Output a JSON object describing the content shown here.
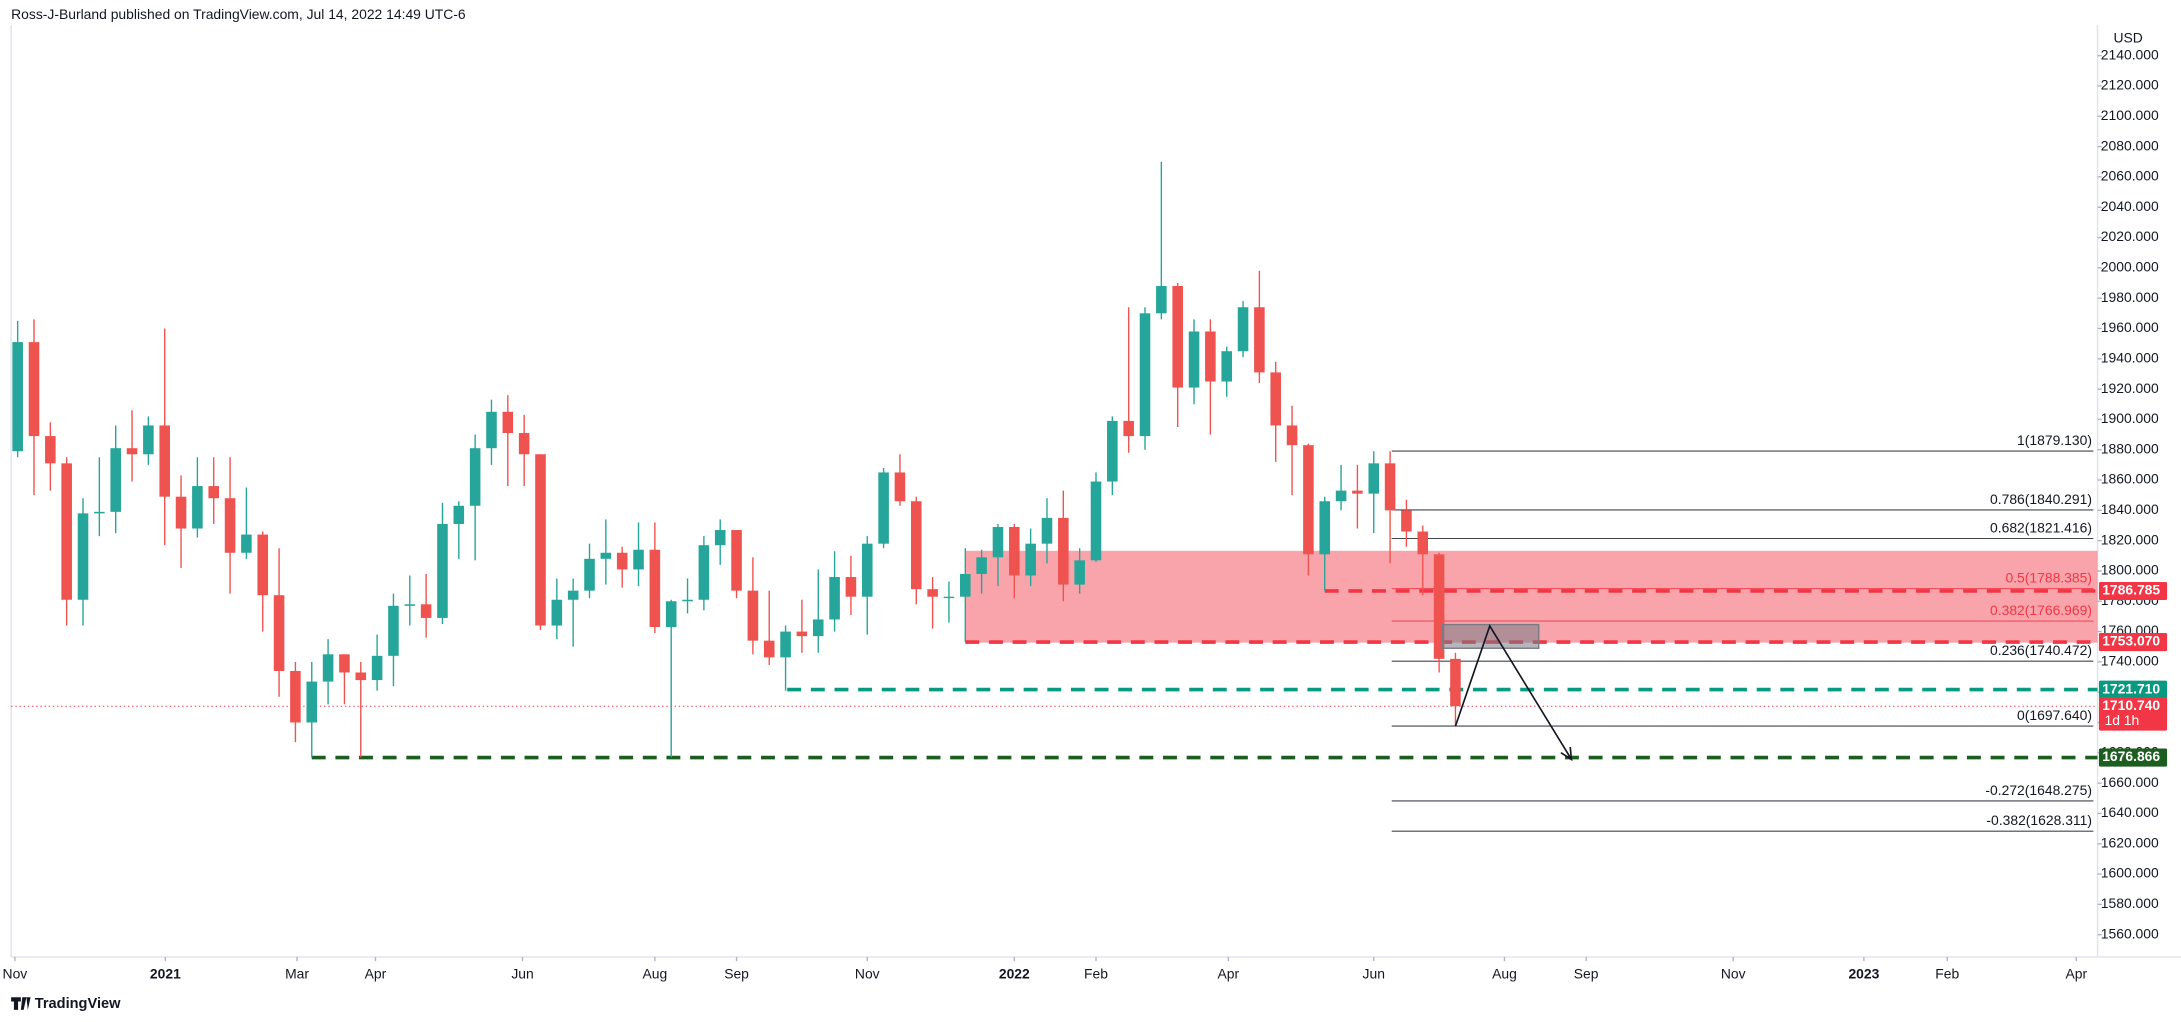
{
  "header": {
    "text": "Ross-J-Burland published on TradingView.com, Jul 14, 2022 14:49 UTC-6"
  },
  "footer": {
    "brand": "TradingView"
  },
  "chart_data": {
    "type": "candlestick",
    "currency": "USD",
    "up_color": "#26a69a",
    "down_color": "#ef5350",
    "grid": false,
    "xlim": [
      -0.4,
      127.3
    ],
    "xticks": [
      {
        "value": -0.17,
        "label": "Nov"
      },
      {
        "value": 9.04,
        "label": "2021"
      },
      {
        "value": 17.1,
        "label": "Mar"
      },
      {
        "value": 21.9,
        "label": "Apr"
      },
      {
        "value": 30.9,
        "label": "Jun"
      },
      {
        "value": 39.0,
        "label": "Aug"
      },
      {
        "value": 44.0,
        "label": "Sep"
      },
      {
        "value": 52.0,
        "label": "Nov"
      },
      {
        "value": 61.0,
        "label": "2022"
      },
      {
        "value": 66.0,
        "label": "Feb"
      },
      {
        "value": 74.1,
        "label": "Apr"
      },
      {
        "value": 83.0,
        "label": "Jun"
      },
      {
        "value": 91.0,
        "label": "Aug"
      },
      {
        "value": 96.0,
        "label": "Sep"
      },
      {
        "value": 105.0,
        "label": "Nov"
      },
      {
        "value": 113.0,
        "label": "2023"
      },
      {
        "value": 118.1,
        "label": "Feb"
      },
      {
        "value": 126.0,
        "label": "Apr"
      }
    ],
    "ylim": [
      1545.3,
      2160.2
    ],
    "yticks": [
      {
        "value": 1560,
        "label": "1560.000"
      },
      {
        "value": 1580,
        "label": "1580.000"
      },
      {
        "value": 1600,
        "label": "1600.000"
      },
      {
        "value": 1620,
        "label": "1620.000"
      },
      {
        "value": 1640,
        "label": "1640.000"
      },
      {
        "value": 1660,
        "label": "1660.000"
      },
      {
        "value": 1680,
        "label": "1680.000"
      },
      {
        "value": 1700,
        "label": "1700.000"
      },
      {
        "value": 1720,
        "label": "1720.000"
      },
      {
        "value": 1740,
        "label": "1740.000"
      },
      {
        "value": 1760,
        "label": "1760.000"
      },
      {
        "value": 1780,
        "label": "1780.000"
      },
      {
        "value": 1800,
        "label": "1800.000"
      },
      {
        "value": 1820,
        "label": "1820.000"
      },
      {
        "value": 1840,
        "label": "1840.000"
      },
      {
        "value": 1860,
        "label": "1860.000"
      },
      {
        "value": 1880,
        "label": "1880.000"
      },
      {
        "value": 1900,
        "label": "1900.000"
      },
      {
        "value": 1920,
        "label": "1920.000"
      },
      {
        "value": 1940,
        "label": "1940.000"
      },
      {
        "value": 1960,
        "label": "1960.000"
      },
      {
        "value": 1980,
        "label": "1980.000"
      },
      {
        "value": 2000,
        "label": "2000.000"
      },
      {
        "value": 2020,
        "label": "2020.000"
      },
      {
        "value": 2040,
        "label": "2040.000"
      },
      {
        "value": 2060,
        "label": "2060.000"
      },
      {
        "value": 2080,
        "label": "2080.000"
      },
      {
        "value": 2100,
        "label": "2100.000"
      },
      {
        "value": 2120,
        "label": "2120.000"
      },
      {
        "value": 2140,
        "label": "2140.000"
      }
    ],
    "open": [
      1879,
      1951,
      1889,
      1871,
      1781,
      1838,
      1839,
      1881,
      1877,
      1896,
      1849,
      1828,
      1856,
      1848,
      1812,
      1824,
      1784,
      1734,
      1700,
      1727,
      1745,
      1733,
      1728,
      1744,
      1777,
      1778,
      1769,
      1831,
      1843,
      1881,
      1905,
      1891,
      1877,
      1764,
      1781,
      1787,
      1808,
      1812,
      1801,
      1814,
      1763,
      1780,
      1781,
      1817,
      1827,
      1787,
      1754,
      1743,
      1760,
      1757,
      1768,
      1796,
      1783,
      1818,
      1865,
      1846,
      1788,
      1783,
      1783,
      1798,
      1809,
      1829,
      1797,
      1818,
      1835,
      1791,
      1807,
      1859,
      1899,
      1889,
      1970,
      1988,
      1921,
      1958,
      1925,
      1945,
      1974,
      1931,
      1896,
      1883,
      1811,
      1846,
      1853,
      1851,
      1871,
      1840,
      1826,
      1811,
      1742
    ],
    "high": [
      1965,
      1966,
      1898,
      1875,
      1848,
      1875,
      1896,
      1906,
      1902,
      1960,
      1863,
      1875,
      1875,
      1875,
      1855,
      1826,
      1815,
      1740,
      1740,
      1755,
      1745,
      1740,
      1758,
      1785,
      1797,
      1798,
      1845,
      1846,
      1890,
      1913,
      1916,
      1903,
      1877,
      1795,
      1795,
      1818,
      1834,
      1816,
      1832,
      1832,
      1781,
      1795,
      1823,
      1834,
      1827,
      1809,
      1787,
      1764,
      1781,
      1801,
      1813,
      1810,
      1823,
      1868,
      1877,
      1849,
      1796,
      1793,
      1815,
      1814,
      1831,
      1831,
      1828,
      1848,
      1853,
      1815,
      1865,
      1902,
      1974,
      1974,
      2070,
      1990,
      1966,
      1966,
      1948,
      1978,
      1998,
      1938,
      1909,
      1884,
      1849,
      1870,
      1870,
      1879,
      1879,
      1847,
      1830,
      1812,
      1746
    ],
    "low": [
      1875,
      1850,
      1853,
      1764,
      1764,
      1823,
      1825,
      1859,
      1870,
      1817,
      1802,
      1822,
      1831,
      1785,
      1808,
      1760,
      1717,
      1687,
      1677,
      1712,
      1712,
      1677,
      1721,
      1724,
      1764,
      1756,
      1765,
      1808,
      1807,
      1870,
      1856,
      1856,
      1761,
      1755,
      1750,
      1782,
      1791,
      1789,
      1790,
      1759,
      1677,
      1772,
      1774,
      1804,
      1782,
      1745,
      1738,
      1721,
      1746,
      1746,
      1760,
      1771,
      1758,
      1815,
      1843,
      1778,
      1762,
      1766,
      1753,
      1785,
      1790,
      1782,
      1790,
      1805,
      1780,
      1785,
      1806,
      1850,
      1878,
      1880,
      1966,
      1895,
      1910,
      1890,
      1915,
      1941,
      1924,
      1872,
      1850,
      1797,
      1787,
      1840,
      1828,
      1825,
      1805,
      1816,
      1784,
      1733,
      1697.64
    ],
    "close": [
      1951,
      1889,
      1871,
      1781,
      1838,
      1839,
      1881,
      1877,
      1896,
      1849,
      1828,
      1856,
      1848,
      1812,
      1824,
      1784,
      1734,
      1700,
      1727,
      1745,
      1733,
      1728,
      1744,
      1777,
      1778,
      1769,
      1831,
      1843,
      1881,
      1905,
      1891,
      1877,
      1764,
      1781,
      1787,
      1808,
      1812,
      1801,
      1814,
      1763,
      1780,
      1781,
      1817,
      1827,
      1787,
      1754,
      1743,
      1760,
      1757,
      1768,
      1796,
      1783,
      1818,
      1865,
      1846,
      1788,
      1783,
      1783,
      1798,
      1809,
      1829,
      1797,
      1818,
      1835,
      1791,
      1807,
      1859,
      1899,
      1889,
      1970,
      1988,
      1921,
      1958,
      1925,
      1945,
      1974,
      1931,
      1896,
      1883,
      1811,
      1846,
      1853,
      1851,
      1871,
      1840,
      1826,
      1811,
      1742,
      1710.74
    ],
    "zone": {
      "from": 58,
      "ylim": [
        1752.7,
        1813.3
      ],
      "color": "#f23645"
    },
    "box": {
      "xlim": [
        87.2,
        93.1
      ],
      "ylim": [
        1749,
        1764.6
      ],
      "color": "#787b86"
    },
    "projection": {
      "x": [
        88,
        90.1,
        95.1
      ],
      "y": [
        1697.64,
        1763.7,
        1675.6
      ],
      "color": "#131722"
    },
    "levels": [
      {
        "value": 1786.785,
        "label": "1786.785",
        "from": 80,
        "color": "#f23645"
      },
      {
        "value": 1753.07,
        "label": "1753.070",
        "from": 58,
        "color": "#f23645"
      },
      {
        "value": 1721.71,
        "label": "1721.710",
        "from": 47.1,
        "color": "#089981"
      },
      {
        "value": 1676.866,
        "label": "1676.866",
        "from": 18,
        "color": "#1b5e20"
      }
    ],
    "last_price": {
      "value": 1710.74,
      "label": "1710.740",
      "countdown": "1d 1h",
      "color": "#f23645"
    },
    "fib": {
      "from": 84.1,
      "levels": [
        {
          "value": 1879.13,
          "label": "1(1879.130)",
          "color": "#131722"
        },
        {
          "value": 1840.291,
          "label": "0.786(1840.291)",
          "color": "#131722"
        },
        {
          "value": 1821.416,
          "label": "0.682(1821.416)",
          "color": "#131722"
        },
        {
          "value": 1788.385,
          "label": "0.5(1788.385)",
          "color": "#f23645"
        },
        {
          "value": 1766.969,
          "label": "0.382(1766.969)",
          "color": "#f23645"
        },
        {
          "value": 1740.472,
          "label": "0.236(1740.472)",
          "color": "#131722"
        },
        {
          "value": 1697.64,
          "label": "0(1697.640)",
          "color": "#131722"
        },
        {
          "value": 1648.275,
          "label": "-0.272(1648.275)",
          "color": "#131722"
        },
        {
          "value": 1628.311,
          "label": "-0.382(1628.311)",
          "color": "#131722"
        }
      ]
    }
  }
}
